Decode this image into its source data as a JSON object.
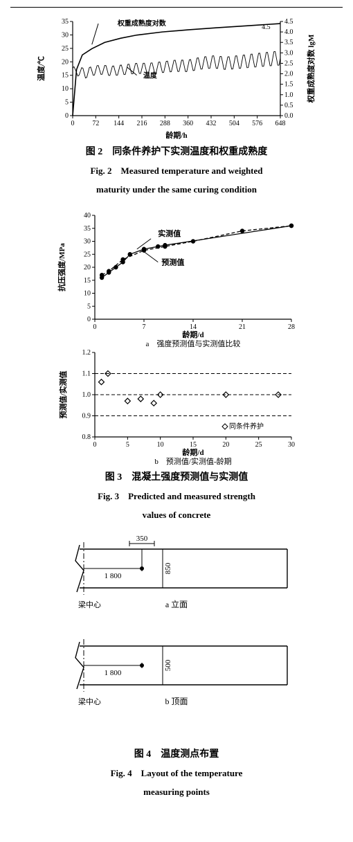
{
  "fig2": {
    "caption_cn": "图 2　同条件养护下实测温度和权重成熟度",
    "caption_en1": "Fig. 2　Measured temperature and weighted",
    "caption_en2": "maturity under the same curing condition",
    "xlabel": "龄期/h",
    "ylabel_left": "温度/℃",
    "ylabel_right": "权重成熟度对数 lgM",
    "x_ticks": [
      0,
      72,
      144,
      216,
      288,
      360,
      432,
      504,
      576,
      648
    ],
    "y_left_ticks": [
      0,
      5,
      10,
      15,
      20,
      25,
      30,
      35
    ],
    "y_right_ticks": [
      0.0,
      0.5,
      1.0,
      1.5,
      2.0,
      2.5,
      3.0,
      3.5,
      4.0,
      4.5
    ],
    "legend1": "权重成熟度对数",
    "legend2": "温度",
    "anno_45": "4.5",
    "maturity_curve": [
      [
        0,
        0.0
      ],
      [
        12,
        2.2
      ],
      [
        30,
        2.9
      ],
      [
        60,
        3.2
      ],
      [
        100,
        3.5
      ],
      [
        150,
        3.7
      ],
      [
        200,
        3.85
      ],
      [
        280,
        4.0
      ],
      [
        360,
        4.1
      ],
      [
        450,
        4.2
      ],
      [
        550,
        4.3
      ],
      [
        648,
        4.4
      ]
    ],
    "temp_x_step": 4,
    "temp_base": [
      [
        0,
        18
      ],
      [
        8,
        16
      ],
      [
        20,
        17
      ],
      [
        40,
        16
      ],
      [
        60,
        17
      ],
      [
        90,
        17.5
      ],
      [
        120,
        17
      ],
      [
        160,
        17.5
      ],
      [
        200,
        18
      ],
      [
        240,
        18
      ],
      [
        280,
        18.5
      ],
      [
        320,
        19
      ],
      [
        360,
        19
      ],
      [
        400,
        20
      ],
      [
        440,
        20.5
      ],
      [
        480,
        20
      ],
      [
        520,
        20.5
      ],
      [
        560,
        21
      ],
      [
        600,
        21.5
      ],
      [
        648,
        22
      ]
    ],
    "temp_amp": 6,
    "temp_period": 24,
    "bg": "#ffffff",
    "line_color": "#000000",
    "font_size": 10
  },
  "fig3": {
    "caption_cn": "图 3　混凝土强度预测值与实测值",
    "caption_en1": "Fig. 3　Predicted and measured strength",
    "caption_en2": "values of concrete",
    "a": {
      "xlabel": "龄期/d",
      "ylabel": "抗压强度/MPa",
      "sublabel": "a　强度预测值与实测值比较",
      "x_ticks": [
        0,
        7,
        14,
        21,
        28
      ],
      "y_ticks": [
        0,
        5,
        10,
        15,
        20,
        25,
        30,
        35,
        40
      ],
      "legend_meas": "实测值",
      "legend_pred": "预测值",
      "measured": [
        [
          1,
          16
        ],
        [
          2,
          18
        ],
        [
          3,
          20
        ],
        [
          4,
          22
        ],
        [
          5,
          25
        ],
        [
          7,
          27
        ],
        [
          9,
          28
        ],
        [
          10,
          28.5
        ],
        [
          28,
          36
        ]
      ],
      "predicted": [
        [
          1,
          17
        ],
        [
          2,
          18.5
        ],
        [
          4,
          23
        ],
        [
          7,
          26.5
        ],
        [
          10,
          28
        ],
        [
          14,
          30
        ],
        [
          21,
          34
        ],
        [
          28,
          36
        ]
      ],
      "line_color": "#000000",
      "marker": "circle",
      "marker_size": 3.2
    },
    "b": {
      "xlabel": "龄期/d",
      "sublabel": "b　预测值/实测值-龄期",
      "ylabel": "预测值/实测值",
      "x_ticks": [
        0,
        5,
        10,
        15,
        20,
        25,
        30
      ],
      "y_ticks": [
        0.8,
        0.9,
        1.0,
        1.1,
        1.2
      ],
      "points": [
        [
          1,
          1.06
        ],
        [
          2,
          1.1
        ],
        [
          5,
          0.97
        ],
        [
          7,
          0.98
        ],
        [
          9,
          0.96
        ],
        [
          10,
          1.0
        ],
        [
          20,
          1.0
        ],
        [
          28,
          1.0
        ]
      ],
      "legend": "同条件养护",
      "line_color": "#000000",
      "marker": "diamond",
      "marker_size": 4,
      "hlines": [
        0.9,
        1.0,
        1.1
      ]
    },
    "bg": "#ffffff",
    "font_size": 10
  },
  "fig4": {
    "caption_cn": "图 4　温度测点布置",
    "caption_en1": "Fig. 4　Layout of the temperature",
    "caption_en2": "measuring points",
    "a_label": "a 立面",
    "b_label": "b 顶面",
    "label_350": "350",
    "label_1800": "1 800",
    "label_850": "850",
    "label_500": "500",
    "beam_center": "梁中心",
    "line_color": "#000000",
    "font_size": 11
  }
}
